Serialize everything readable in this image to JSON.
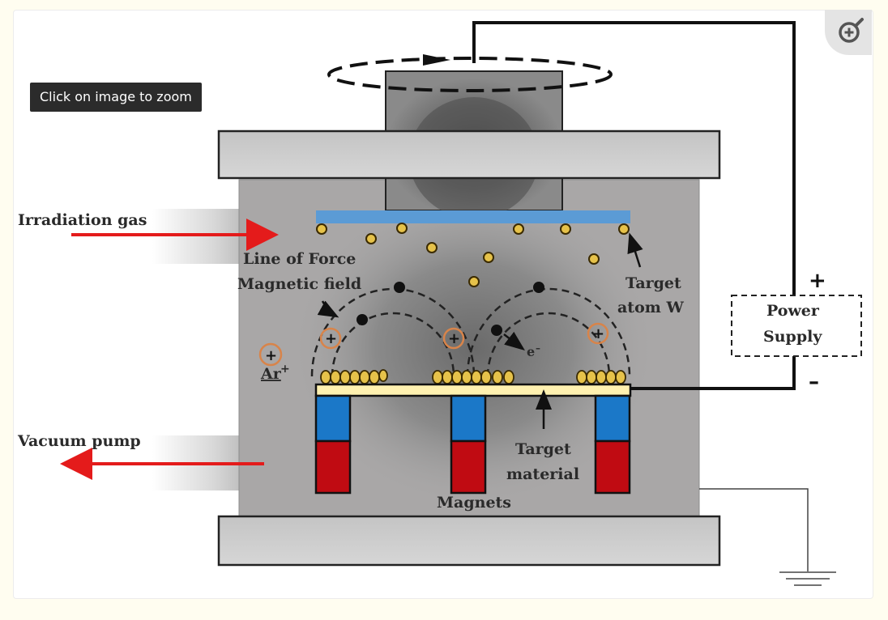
{
  "zoom_tooltip": "Click on image to zoom",
  "labels": {
    "irradiation_gas": "Irradiation gas",
    "line_of_force_1": "Line of Force",
    "line_of_force_2": "Magnetic field",
    "target_atom_1": "Target",
    "target_atom_2": "atom W",
    "power_supply_1": "Power",
    "power_supply_2": "Supply",
    "plus": "+",
    "minus": "–",
    "ar": "Ar",
    "ar_sup": "+",
    "electron": "e",
    "electron_sup": "–",
    "vacuum_pump": "Vacuum  pump",
    "target_material_1": "Target",
    "target_material_2": "material",
    "magnets": "Magnets"
  },
  "colors": {
    "arrow_red": "#e41b1b",
    "magnet_blue": "#1b78c8",
    "magnet_red": "#c00b12",
    "substrate_blue": "#5b9bd5",
    "target_yellow": "#fff1b0",
    "atom_gold": "#e6c24a",
    "ion_ring": "#d8844a"
  },
  "icons": {
    "zoom": "zoom-in-icon"
  }
}
